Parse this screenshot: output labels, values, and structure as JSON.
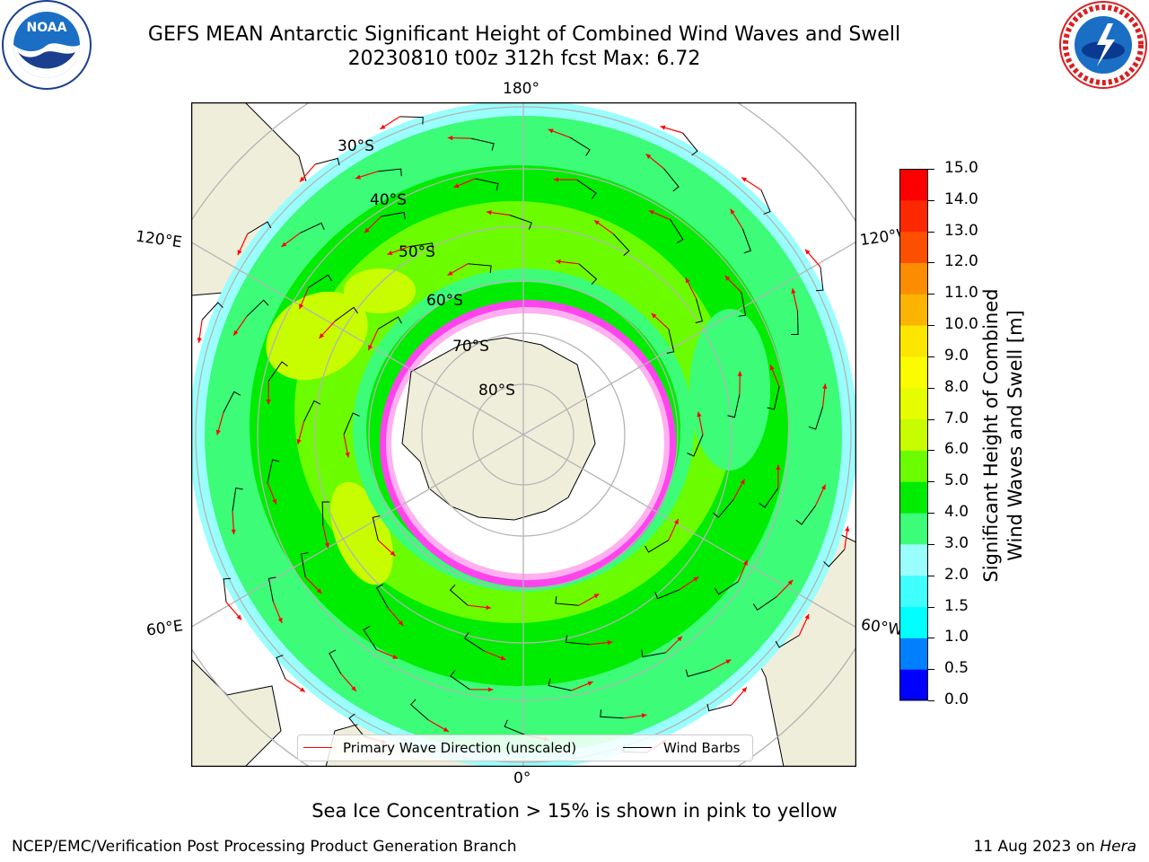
{
  "header": {
    "title_line1": "GEFS MEAN Antarctic Significant Height of Combined Wind Waves and Swell",
    "title_line2": "20230810 t00z 312h fcst   Max: 6.72"
  },
  "logos": {
    "left": "noaa-logo",
    "right": "nws-logo"
  },
  "map": {
    "projection": "south-polar-stereographic",
    "longitude_labels": {
      "top": "180°",
      "bottom": "0°",
      "left_upper": "120°E",
      "left_lower": "60°E",
      "right_upper": "120°W",
      "right_lower": "60°W"
    },
    "latitude_labels": [
      "30°S",
      "40°S",
      "50°S",
      "60°S",
      "70°S",
      "80°S"
    ],
    "colors": {
      "land": "#efeedb",
      "ocean_low": "#9afffc",
      "ocean_mid": "#3cfc78",
      "ocean_high": "#20e000",
      "ocean_peak": "#6cfc00",
      "ice": "#ffffff",
      "ice_edge": "#ff44ee",
      "grid": "#b4b4b4",
      "wave_arrow": "#ff0000",
      "wind_barb": "#000000"
    }
  },
  "legend": {
    "wave_label": "Primary Wave Direction (unscaled)",
    "wind_label": "Wind Barbs",
    "wave_color": "#ff0000",
    "wind_color": "#000000"
  },
  "colorbar": {
    "title_line1": "Significant Height of Combined",
    "title_line2": "Wind Waves and Swell [m]",
    "ticks": [
      "15.0",
      "14.0",
      "13.0",
      "12.0",
      "11.0",
      "10.0",
      "9.0",
      "8.0",
      "7.0",
      "6.0",
      "5.0",
      "4.0",
      "3.0",
      "2.0",
      "1.5",
      "1.0",
      "0.5",
      "0.0"
    ],
    "colors_bottom_to_top": [
      "#0000ff",
      "#0080ff",
      "#00ffff",
      "#40ffff",
      "#9afffc",
      "#3cfc78",
      "#00ec00",
      "#6cfc00",
      "#c8fc00",
      "#e6fc00",
      "#fcfc00",
      "#fce600",
      "#fcb400",
      "#fc8c00",
      "#fc5000",
      "#fc2800",
      "#fc0000"
    ]
  },
  "notes": {
    "ice": "Sea Ice Concentration > 15% is shown in pink to yellow"
  },
  "footer": {
    "left": "NCEP/EMC/Verification Post Processing Product Generation Branch",
    "right_date": "11 Aug 2023 on ",
    "right_machine": "Hera"
  }
}
